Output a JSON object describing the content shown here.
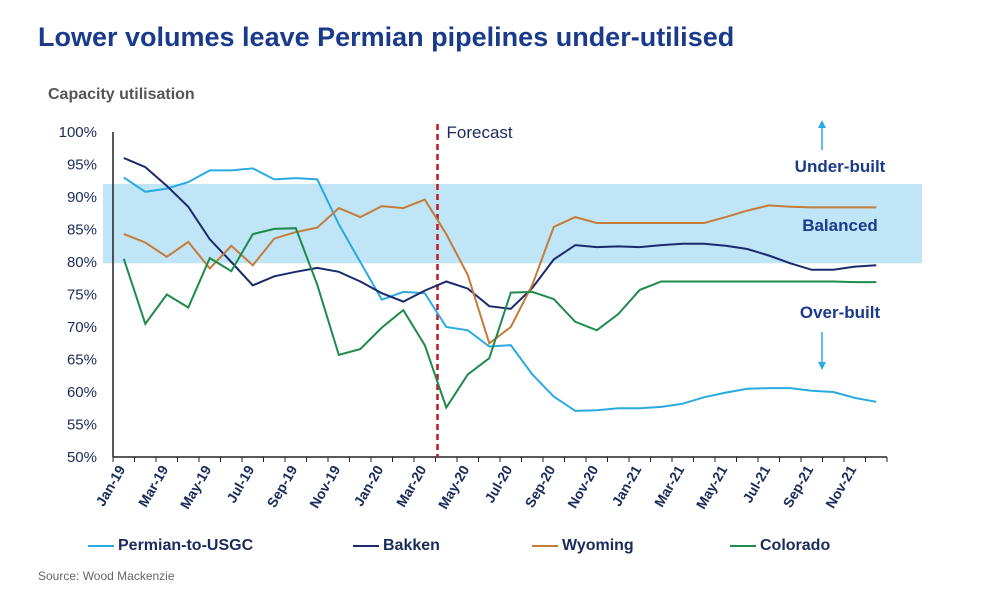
{
  "title": "Lower volumes leave Permian pipelines under-utilised",
  "source": "Source: Wood Mackenzie",
  "chart_data": {
    "type": "line",
    "title": "Lower volumes leave Permian pipelines under-utilised",
    "ylabel": "Capacity utilisation",
    "xlabel": "",
    "ylim": [
      50,
      100
    ],
    "yticks": [
      "50%",
      "55%",
      "60%",
      "65%",
      "70%",
      "75%",
      "80%",
      "85%",
      "90%",
      "95%",
      "100%"
    ],
    "x": [
      "Jan-19",
      "Feb-19",
      "Mar-19",
      "Apr-19",
      "May-19",
      "Jun-19",
      "Jul-19",
      "Aug-19",
      "Sep-19",
      "Oct-19",
      "Nov-19",
      "Dec-19",
      "Jan-20",
      "Feb-20",
      "Mar-20",
      "Apr-20",
      "May-20",
      "Jun-20",
      "Jul-20",
      "Aug-20",
      "Sep-20",
      "Oct-20",
      "Nov-20",
      "Dec-20",
      "Jan-21",
      "Feb-21",
      "Mar-21",
      "Apr-21",
      "May-21",
      "Jun-21",
      "Jul-21",
      "Aug-21",
      "Sep-21",
      "Oct-21",
      "Nov-21",
      "Dec-21"
    ],
    "xtick_labels": [
      "Jan-19",
      "Mar-19",
      "May-19",
      "Jul-19",
      "Sep-19",
      "Nov-19",
      "Jan-20",
      "Mar-20",
      "May-20",
      "Jul-20",
      "Sep-20",
      "Nov-20",
      "Jan-21",
      "Mar-21",
      "May-21",
      "Jul-21",
      "Sep-21",
      "Nov-21"
    ],
    "series": [
      {
        "name": "Permian-to-USGC",
        "color": "#29abe2",
        "values": [
          93,
          90.8,
          91.3,
          92.3,
          94.1,
          94.1,
          94.4,
          92.7,
          92.9,
          92.7,
          85.8,
          80,
          74.2,
          75.4,
          75.2,
          70,
          69.5,
          67,
          67.2,
          62.7,
          59.3,
          57.1,
          57.2,
          57.5,
          57.5,
          57.7,
          58.2,
          59.2,
          59.9,
          60.5,
          60.6,
          60.6,
          60.2,
          60,
          59.1,
          58.5
        ]
      },
      {
        "name": "Bakken",
        "color": "#1a2a6c",
        "values": [
          96,
          94.6,
          91.7,
          88.5,
          83.5,
          80,
          76.4,
          77.8,
          78.5,
          79.1,
          78.5,
          77,
          75.2,
          73.9,
          75.6,
          77,
          75.9,
          73.2,
          72.8,
          76,
          80.4,
          82.6,
          82.3,
          82.4,
          82.3,
          82.6,
          82.8,
          82.8,
          82.5,
          82,
          81,
          79.8,
          78.8,
          78.8,
          79.3,
          79.5
        ]
      },
      {
        "name": "Wyoming",
        "color": "#c47c3a",
        "values": [
          84.3,
          83,
          80.8,
          83.1,
          79,
          82.5,
          79.5,
          83.6,
          84.6,
          85.3,
          88.3,
          86.9,
          88.6,
          88.3,
          89.6,
          84.3,
          78,
          67.5,
          70,
          76.5,
          85.4,
          86.9,
          86,
          86,
          86,
          86,
          86,
          86,
          86.9,
          87.9,
          88.7,
          88.5,
          88.4,
          88.4,
          88.4,
          88.4
        ]
      },
      {
        "name": "Colorado",
        "color": "#1e8a4c",
        "values": [
          80.5,
          70.5,
          75,
          73,
          80.6,
          78.6,
          84.3,
          85.1,
          85.2,
          76.5,
          65.7,
          66.6,
          69.9,
          72.6,
          67.2,
          57.6,
          62.7,
          65.2,
          75.3,
          75.4,
          74.3,
          70.8,
          69.5,
          72,
          75.7,
          77,
          77,
          77,
          77,
          77,
          77,
          77,
          77,
          77,
          76.9,
          76.9
        ]
      }
    ],
    "balanced_band": [
      79.8,
      92
    ],
    "forecast_marker": {
      "x": "Apr-20",
      "label": "Forecast"
    },
    "annotations": [
      {
        "text": "Under-built",
        "arrow": "up"
      },
      {
        "text": "Balanced"
      },
      {
        "text": "Over-built",
        "arrow": "down"
      }
    ],
    "grid": false,
    "legend_position": "bottom"
  }
}
